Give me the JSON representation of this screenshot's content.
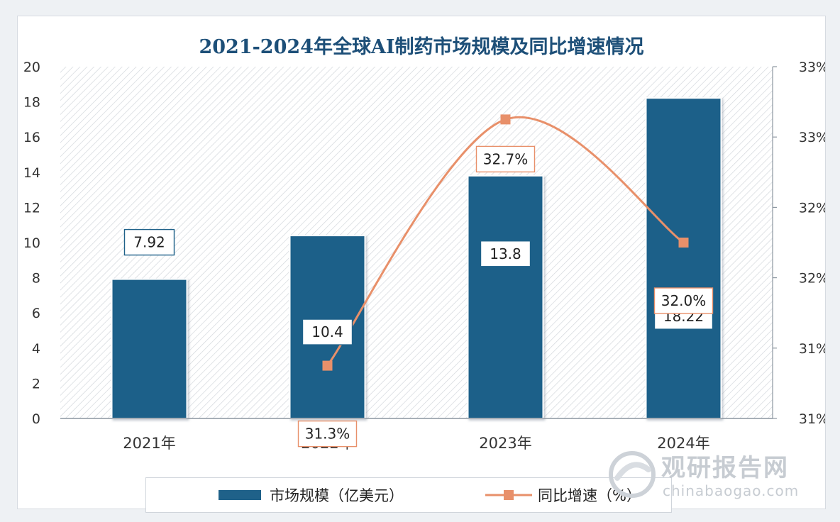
{
  "chart_data": {
    "type": "bar+line",
    "title": "2021-2024年全球AI制药市场规模及同比增速情况",
    "categories": [
      "2021年",
      "2022年",
      "2023年",
      "2024年"
    ],
    "series": [
      {
        "name": "市场规模（亿美元）",
        "type": "bar",
        "axis": "left",
        "values": [
          7.92,
          10.4,
          13.8,
          18.22
        ],
        "labels": [
          "7.92",
          "10.4",
          "13.8",
          "18.22"
        ],
        "color": "#1f6189"
      },
      {
        "name": "同比增速（%）",
        "type": "line",
        "axis": "right",
        "values": [
          null,
          31.3,
          32.7,
          32.0
        ],
        "labels": [
          "",
          "31.3%",
          "32.7%",
          "32.0%"
        ],
        "color": "#e8906a"
      }
    ],
    "y_left": {
      "ylim": [
        0,
        20
      ],
      "ticks": [
        "0",
        "2",
        "4",
        "6",
        "8",
        "10",
        "12",
        "14",
        "16",
        "18",
        "20"
      ]
    },
    "y_right": {
      "ylim": [
        31.0,
        33.0
      ],
      "ticks": [
        "31%",
        "31%",
        "32%",
        "32%",
        "33%",
        "33%"
      ]
    },
    "legend": "bottom",
    "plot_background": "hatched"
  },
  "watermark": {
    "cn": "观研报告网",
    "en": "chinabaogao.com"
  }
}
